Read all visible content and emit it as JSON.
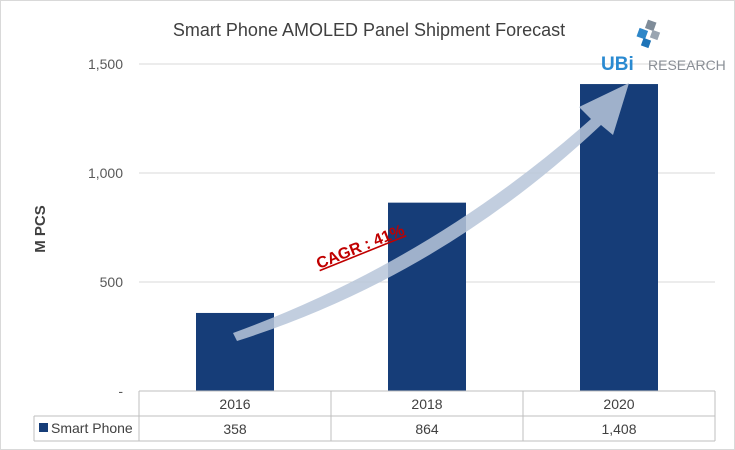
{
  "chart_data": {
    "type": "bar",
    "title": "Smart Phone AMOLED Panel Shipment Forecast",
    "ylabel": "M PCS",
    "xlabel": "",
    "ylim": [
      0,
      1500
    ],
    "yticks": [
      {
        "v": 0,
        "label": "-"
      },
      {
        "v": 500,
        "label": "500"
      },
      {
        "v": 1000,
        "label": "1,000"
      },
      {
        "v": 1500,
        "label": "1,500"
      }
    ],
    "categories": [
      "2016",
      "2018",
      "2020"
    ],
    "series": [
      {
        "name": "Smart Phone",
        "values": [
          358,
          864,
          1408
        ],
        "value_labels": [
          "358",
          "864",
          "1,408"
        ],
        "color": "#163d78"
      }
    ],
    "grid": true,
    "legend": "data-table",
    "annotation": "CAGR : 41%"
  },
  "logo": {
    "text_ubi": "UBi",
    "text_research": "RESEARCH"
  },
  "colors": {
    "bar": "#163d78",
    "annotation": "#c00000",
    "arrow": "#b7c6d9"
  }
}
